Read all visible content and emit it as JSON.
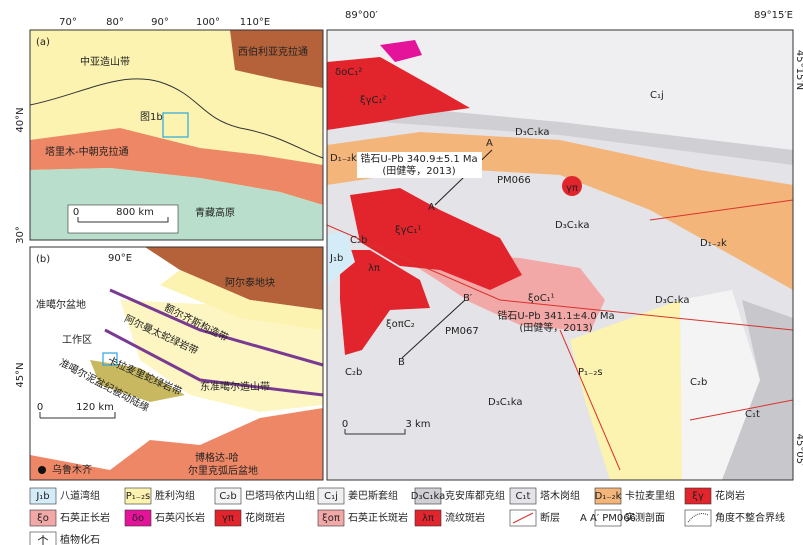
{
  "panel_a": {
    "label": "(a)",
    "lon_ticks": [
      "70°",
      "80°",
      "90°",
      "100°",
      "110°E"
    ],
    "lat_ticks": [
      "40°N",
      "30°"
    ],
    "regions": [
      "西伯利亚克拉通",
      "中亚造山带",
      "塔里木-中朝克拉通",
      "青藏高原"
    ],
    "inset": "图1b",
    "scale": [
      "0",
      "800 km"
    ]
  },
  "panel_b": {
    "label": "(b)",
    "lon_tick": "90°E",
    "lat_tick": "45°N",
    "units": [
      "阿尔泰地块",
      "额尔齐斯构造带",
      "准噶尔盆地",
      "阿尔曼太蛇绿岩带",
      "卡拉麦里蛇绿岩带",
      "工作区",
      "东准噶尔造山带",
      "准噶尔泥盆纪被动陆缘",
      "博格达-哈",
      "尔里克弧后盆地"
    ],
    "city": "乌鲁木齐",
    "scale": [
      "0",
      "120 km"
    ]
  },
  "main_map": {
    "lon_ticks": [
      "89°00′",
      "89°15′E"
    ],
    "lat_ticks": [
      "45°15′N",
      "45°05′"
    ],
    "units": [
      "δοC₁²",
      "ξγC₁²",
      "D₃C₁ka",
      "C₁j",
      "D₁₋₂k",
      "γπ",
      "D₃C₁ka",
      "D₁₋₂k",
      "C₂b",
      "J₁b",
      "ξγC₁¹",
      "λπ",
      "ξοπC₂",
      "ξοC₁¹",
      "D₃C₁ka",
      "P₁₋₂s",
      "C₂b",
      "C₁t",
      "C₂b",
      "D₃C₁ka"
    ],
    "ages": [
      {
        "text": "锆石U-Pb 340.9±5.1 Ma",
        "ref": "(田健等，2013)"
      },
      {
        "text": "锆石U-Pb 341.1±4.0 Ma",
        "ref": "(田健等，2013)"
      }
    ],
    "sections": [
      "A",
      "A′",
      "PM066",
      "B",
      "B′",
      "PM067"
    ],
    "scale": [
      "0",
      "3 km"
    ]
  },
  "legend": [
    {
      "symbol": "J₁b",
      "name": "八道湾组"
    },
    {
      "symbol": "P₁₋₂s",
      "name": "胜利沟组"
    },
    {
      "symbol": "C₂b",
      "name": "巴塔玛依内山组"
    },
    {
      "symbol": "C₁j",
      "name": "姜巴斯套组"
    },
    {
      "symbol": "D₃C₁ka",
      "name": "克安库都克组"
    },
    {
      "symbol": "C₁t",
      "name": "塔木岗组"
    },
    {
      "symbol": "D₁₋₂k",
      "name": "卡拉麦里组"
    },
    {
      "symbol": "ξγ",
      "name": "花岗岩"
    },
    {
      "symbol": "ξο",
      "name": "石英正长岩"
    },
    {
      "symbol": "δο",
      "name": "石英闪长岩"
    },
    {
      "symbol": "γπ",
      "name": "花岗斑岩"
    },
    {
      "symbol": "ξοπ",
      "name": "石英正长斑岩"
    },
    {
      "symbol": "λπ",
      "name": "流纹斑岩"
    },
    {
      "name": "断层"
    },
    {
      "symbol": "A A′ PM066",
      "name": "实测剖面"
    },
    {
      "name": "角度不整合界线"
    },
    {
      "name": "植物化石"
    }
  ]
}
